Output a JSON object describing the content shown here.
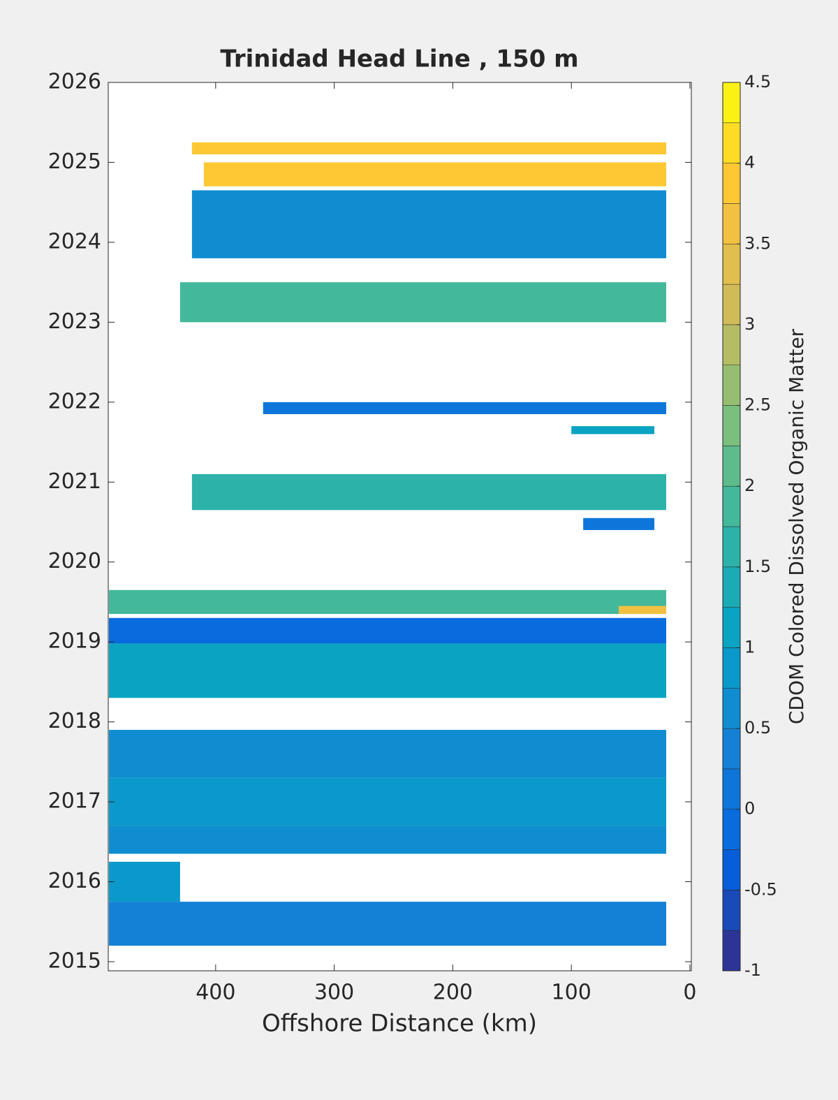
{
  "chart_data": {
    "type": "contour",
    "title": "Trinidad Head Line , 150 m",
    "x_label": "Offshore Distance (km)",
    "colorbar_label": "CDOM Colored Dissolved Organic Matter",
    "xlim": [
      490.6,
      -1.2
    ],
    "xticks": [
      400,
      300,
      200,
      100,
      0
    ],
    "ylim": [
      2014.886,
      2026
    ],
    "yticks": [
      2015,
      2016,
      2017,
      2018,
      2019,
      2020,
      2021,
      2022,
      2023,
      2024,
      2025,
      2026
    ],
    "clim": [
      -1,
      4.5
    ],
    "cticks": [
      -1,
      -0.5,
      0,
      0.5,
      1,
      1.5,
      2,
      2.5,
      3,
      3.5,
      4,
      4.5
    ],
    "colormap": "parula",
    "color_levels": 22,
    "regions": [
      {
        "y0": 2025.1,
        "y1": 2025.25,
        "x0": 420,
        "x1": 20,
        "value": 3.8
      },
      {
        "y0": 2024.7,
        "y1": 2025.0,
        "x0": 410,
        "x1": 20,
        "value": 3.9
      },
      {
        "y0": 2023.8,
        "y1": 2024.65,
        "x0": 420,
        "x1": 20,
        "value": 0.6
      },
      {
        "y0": 2023.0,
        "y1": 2023.5,
        "x0": 430,
        "x1": 20,
        "value": 1.9
      },
      {
        "y0": 2021.85,
        "y1": 2022.0,
        "x0": 360,
        "x1": 20,
        "value": 0.1
      },
      {
        "y0": 2021.6,
        "y1": 2021.7,
        "x0": 100,
        "x1": 30,
        "value": 1.2
      },
      {
        "y0": 2020.65,
        "y1": 2021.1,
        "x0": 420,
        "x1": 20,
        "value": 1.7
      },
      {
        "y0": 2020.4,
        "y1": 2020.55,
        "x0": 90,
        "x1": 30,
        "value": 0.0
      },
      {
        "y0": 2019.35,
        "y1": 2019.65,
        "x0": 490,
        "x1": 20,
        "value": 1.9
      },
      {
        "y0": 2019.35,
        "y1": 2019.45,
        "x0": 60,
        "x1": 20,
        "value": 3.6
      },
      {
        "y0": 2018.98,
        "y1": 2019.3,
        "x0": 490,
        "x1": 20,
        "value": -0.2
      },
      {
        "y0": 2018.3,
        "y1": 2018.98,
        "x0": 490,
        "x1": 20,
        "value": 1.1
      },
      {
        "y0": 2017.3,
        "y1": 2017.9,
        "x0": 490,
        "x1": 20,
        "value": 0.5
      },
      {
        "y0": 2016.7,
        "y1": 2017.3,
        "x0": 490,
        "x1": 20,
        "value": 0.8
      },
      {
        "y0": 2016.35,
        "y1": 2016.7,
        "x0": 490,
        "x1": 20,
        "value": 0.5
      },
      {
        "y0": 2015.75,
        "y1": 2016.25,
        "x0": 490,
        "x1": 430,
        "value": 0.9
      },
      {
        "y0": 2015.2,
        "y1": 2015.75,
        "x0": 490,
        "x1": 20,
        "value": 0.3
      }
    ]
  }
}
